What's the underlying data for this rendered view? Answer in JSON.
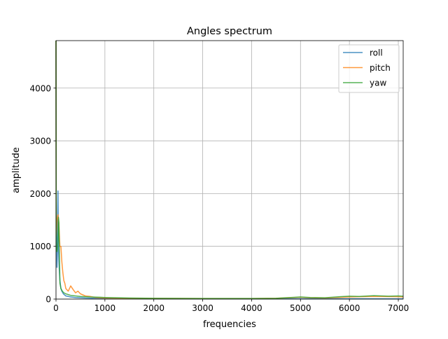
{
  "chart_data": {
    "type": "line",
    "title": "Angles spectrum",
    "xlabel": "frequencies",
    "ylabel": "amplitude",
    "xlim": [
      0,
      7100
    ],
    "ylim": [
      0,
      4900
    ],
    "xticks": [
      0,
      1000,
      2000,
      3000,
      4000,
      5000,
      6000,
      7000
    ],
    "yticks": [
      0,
      1000,
      2000,
      3000,
      4000
    ],
    "grid": true,
    "legend_position": "top-right",
    "series": [
      {
        "name": "roll",
        "color": "#1f77b4",
        "x": [
          0,
          5,
          10,
          20,
          30,
          40,
          50,
          60,
          70,
          80,
          100,
          120,
          150,
          200,
          300,
          400,
          600,
          800,
          1000,
          1500,
          2000,
          3000,
          4000,
          5000,
          6000,
          7000,
          7100
        ],
        "y": [
          4900,
          2000,
          1200,
          600,
          900,
          2050,
          1000,
          700,
          500,
          350,
          200,
          150,
          100,
          60,
          40,
          30,
          20,
          15,
          12,
          8,
          6,
          5,
          5,
          6,
          6,
          5,
          5
        ]
      },
      {
        "name": "pitch",
        "color": "#ff7f0e",
        "x": [
          0,
          5,
          20,
          40,
          60,
          80,
          100,
          120,
          140,
          160,
          180,
          200,
          250,
          300,
          350,
          400,
          450,
          500,
          600,
          700,
          800,
          900,
          1000,
          1500,
          2000,
          3000,
          4000,
          4500,
          5000,
          5200,
          5500,
          6000,
          6500,
          7000,
          7100
        ],
        "y": [
          4900,
          1200,
          1500,
          1600,
          1400,
          1000,
          1000,
          700,
          500,
          350,
          300,
          200,
          150,
          250,
          180,
          120,
          150,
          100,
          60,
          50,
          30,
          25,
          20,
          15,
          12,
          10,
          10,
          15,
          35,
          25,
          20,
          40,
          50,
          45,
          40
        ]
      },
      {
        "name": "yaw",
        "color": "#2ca02c",
        "x": [
          0,
          5,
          20,
          40,
          50,
          60,
          80,
          100,
          130,
          160,
          200,
          300,
          400,
          500,
          700,
          900,
          1000,
          1500,
          2000,
          3000,
          4000,
          4500,
          5000,
          5200,
          5500,
          5800,
          6000,
          6200,
          6500,
          6800,
          7000,
          7100
        ],
        "y": [
          4900,
          1000,
          900,
          1100,
          1550,
          1450,
          300,
          200,
          150,
          120,
          100,
          70,
          60,
          50,
          40,
          35,
          30,
          20,
          15,
          12,
          12,
          15,
          40,
          30,
          25,
          45,
          55,
          50,
          65,
          55,
          60,
          55
        ]
      }
    ]
  }
}
